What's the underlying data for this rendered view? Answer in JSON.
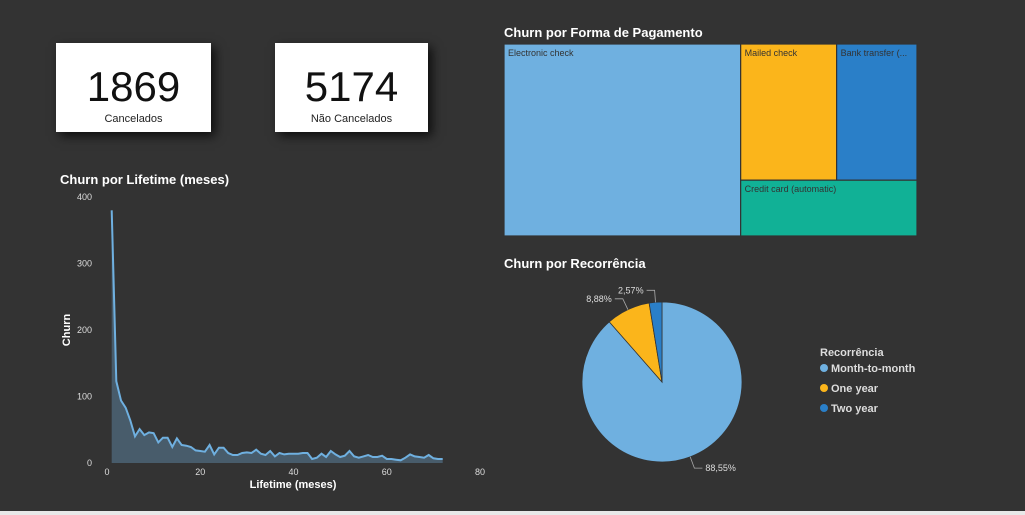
{
  "kpis": {
    "cancelled": {
      "value": "1869",
      "label": "Cancelados"
    },
    "not_cancelled": {
      "value": "5174",
      "label": "Não Cancelados"
    }
  },
  "chart_data": [
    {
      "type": "area",
      "title": "Churn por Lifetime (meses)",
      "xlabel": "Lifetime (meses)",
      "ylabel": "Churn",
      "xlim": [
        0,
        80
      ],
      "ylim": [
        0,
        400
      ],
      "xticks": [
        0,
        20,
        40,
        60,
        80
      ],
      "yticks": [
        0,
        100,
        200,
        300,
        400
      ],
      "grid": false,
      "color": "#6fb0e0",
      "x": [
        1,
        2,
        3,
        4,
        5,
        6,
        7,
        8,
        9,
        10,
        11,
        12,
        13,
        14,
        15,
        16,
        17,
        18,
        19,
        20,
        21,
        22,
        23,
        24,
        25,
        26,
        27,
        28,
        29,
        30,
        31,
        32,
        33,
        34,
        35,
        36,
        37,
        38,
        39,
        40,
        41,
        42,
        43,
        44,
        45,
        46,
        47,
        48,
        49,
        50,
        51,
        52,
        53,
        54,
        55,
        56,
        57,
        58,
        59,
        60,
        61,
        62,
        63,
        64,
        65,
        66,
        67,
        68,
        69,
        70,
        71,
        72
      ],
      "y": [
        380,
        123,
        94,
        83,
        64,
        40,
        51,
        42,
        46,
        45,
        31,
        38,
        38,
        24,
        37,
        27,
        26,
        24,
        19,
        18,
        17,
        27,
        13,
        23,
        23,
        15,
        12,
        12,
        15,
        16,
        15,
        20,
        14,
        12,
        18,
        10,
        15,
        13,
        14,
        14,
        14,
        15,
        15,
        6,
        8,
        14,
        9,
        18,
        13,
        9,
        11,
        18,
        10,
        8,
        10,
        12,
        9,
        9,
        11,
        6,
        6,
        5,
        4,
        8,
        13,
        10,
        9,
        8,
        12,
        7,
        6,
        6
      ]
    },
    {
      "type": "treemap",
      "title": "Churn por Forma de Pagamento",
      "categories": [
        "Electronic check",
        "Mailed check",
        "Bank transfer (...",
        "Credit card (automatic)"
      ],
      "values": [
        1071,
        308,
        258,
        232
      ],
      "colors": [
        "#6fb0e0",
        "#fbb51b",
        "#2a7fc8",
        "#11b196"
      ]
    },
    {
      "type": "pie",
      "title": "Churn por Recorrência",
      "legend_title": "Recorrência",
      "legend_position": "right",
      "categories": [
        "Month-to-month",
        "One year",
        "Two year"
      ],
      "values": [
        88.55,
        8.88,
        2.57
      ],
      "labels": [
        "88,55%",
        "8,88%",
        "2,57%"
      ],
      "colors": [
        "#6fb0e0",
        "#fbb51b",
        "#2a7fc8"
      ]
    }
  ]
}
